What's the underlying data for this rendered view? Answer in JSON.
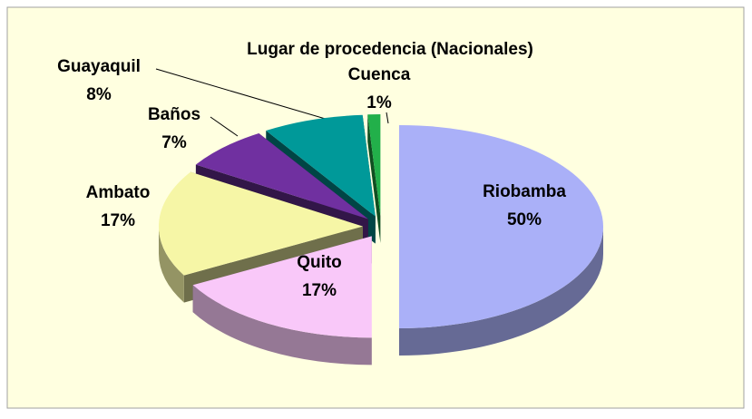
{
  "chart_data": {
    "type": "pie",
    "title": "Lugar de procedencia (Nacionales)",
    "categories": [
      "Riobamba",
      "Quito",
      "Ambato",
      "Baños",
      "Guayaquil",
      "Cuenca"
    ],
    "values": [
      50,
      17,
      17,
      7,
      8,
      1
    ],
    "value_labels": [
      "50%",
      "17%",
      "17%",
      "7%",
      "8%",
      "1%"
    ],
    "colors": [
      "#aab0f8",
      "#f9c8f9",
      "#f6f6a6",
      "#7030a0",
      "#009999",
      "#22b04a"
    ]
  }
}
